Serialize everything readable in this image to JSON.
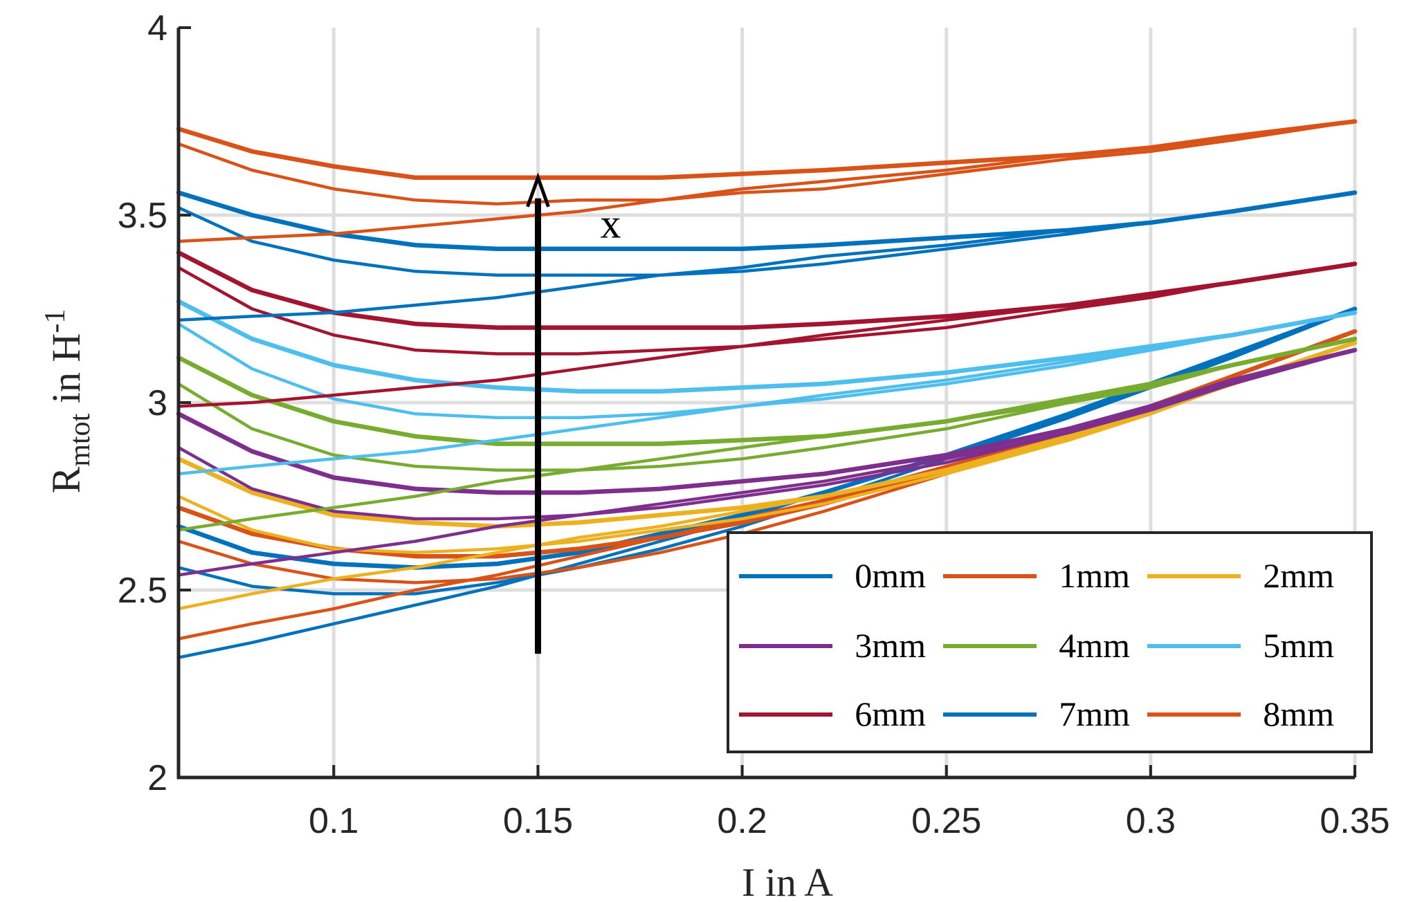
{
  "chart_data": {
    "type": "line",
    "title": "",
    "xlabel": "I in A",
    "ylabel": {
      "base": "R",
      "subscript": "mtot",
      "mid": " in H",
      "superscript": "-1"
    },
    "xlim": [
      0.062,
      0.35
    ],
    "ylim": [
      2,
      4
    ],
    "grid": true,
    "x_ticks": [
      {
        "value": 0.1,
        "label": "0.1"
      },
      {
        "value": 0.15,
        "label": "0.15"
      },
      {
        "value": 0.2,
        "label": "0.2"
      },
      {
        "value": 0.25,
        "label": "0.25"
      },
      {
        "value": 0.3,
        "label": "0.3"
      },
      {
        "value": 0.35,
        "label": "0.35"
      }
    ],
    "y_ticks": [
      {
        "value": 2,
        "label": "2"
      },
      {
        "value": 2.5,
        "label": "2.5"
      },
      {
        "value": 3,
        "label": "3"
      },
      {
        "value": 3.5,
        "label": "3.5"
      },
      {
        "value": 4,
        "label": "4"
      }
    ],
    "legend_position": "bottom-right",
    "legend_columns": 3,
    "annotation": {
      "text": "x",
      "arrow_x": 0.15,
      "arrow_from": 2.33,
      "arrow_to": 3.6
    },
    "series": [
      {
        "name": "0mm",
        "color": "#0072BD",
        "curves": [
          {
            "x": [
              0.062,
              0.08,
              0.1,
              0.12,
              0.14,
              0.16,
              0.18,
              0.2,
              0.22,
              0.25,
              0.28,
              0.3,
              0.32,
              0.35
            ],
            "y": [
              2.67,
              2.6,
              2.57,
              2.56,
              2.57,
              2.6,
              2.65,
              2.7,
              2.76,
              2.86,
              2.97,
              3.05,
              3.13,
              3.25
            ]
          },
          {
            "x": [
              0.062,
              0.08,
              0.1,
              0.12,
              0.14,
              0.16,
              0.18,
              0.2,
              0.22,
              0.25,
              0.28,
              0.3,
              0.32,
              0.35
            ],
            "y": [
              2.56,
              2.51,
              2.49,
              2.49,
              2.52,
              2.56,
              2.61,
              2.67,
              2.74,
              2.85,
              2.96,
              3.04,
              3.12,
              3.25
            ]
          },
          {
            "x": [
              0.062,
              0.08,
              0.1,
              0.12,
              0.14,
              0.16,
              0.18,
              0.2,
              0.22,
              0.25,
              0.28,
              0.3,
              0.32,
              0.35
            ],
            "y": [
              2.32,
              2.36,
              2.41,
              2.46,
              2.51,
              2.57,
              2.63,
              2.69,
              2.76,
              2.86,
              2.97,
              3.05,
              3.13,
              3.25
            ]
          }
        ]
      },
      {
        "name": "1mm",
        "color": "#D95319",
        "curves": [
          {
            "x": [
              0.062,
              0.08,
              0.1,
              0.12,
              0.14,
              0.16,
              0.18,
              0.2,
              0.22,
              0.25,
              0.28,
              0.3,
              0.32,
              0.35
            ],
            "y": [
              2.72,
              2.65,
              2.61,
              2.59,
              2.59,
              2.61,
              2.64,
              2.68,
              2.73,
              2.82,
              2.92,
              2.99,
              3.07,
              3.19
            ]
          },
          {
            "x": [
              0.062,
              0.08,
              0.1,
              0.12,
              0.14,
              0.16,
              0.18,
              0.2,
              0.22,
              0.25,
              0.28,
              0.3,
              0.32,
              0.35
            ],
            "y": [
              2.63,
              2.57,
              2.53,
              2.52,
              2.53,
              2.56,
              2.6,
              2.65,
              2.71,
              2.81,
              2.91,
              2.99,
              3.07,
              3.19
            ]
          },
          {
            "x": [
              0.062,
              0.08,
              0.1,
              0.12,
              0.14,
              0.16,
              0.18,
              0.2,
              0.22,
              0.25,
              0.28,
              0.3,
              0.32,
              0.35
            ],
            "y": [
              2.37,
              2.41,
              2.45,
              2.5,
              2.54,
              2.59,
              2.64,
              2.69,
              2.74,
              2.83,
              2.92,
              2.99,
              3.07,
              3.19
            ]
          }
        ]
      },
      {
        "name": "2mm",
        "color": "#EDB120",
        "curves": [
          {
            "x": [
              0.062,
              0.08,
              0.1,
              0.12,
              0.14,
              0.16,
              0.18,
              0.2,
              0.22,
              0.25,
              0.28,
              0.3,
              0.32,
              0.35
            ],
            "y": [
              2.85,
              2.76,
              2.7,
              2.68,
              2.67,
              2.68,
              2.7,
              2.72,
              2.75,
              2.82,
              2.91,
              2.98,
              3.05,
              3.16
            ]
          },
          {
            "x": [
              0.062,
              0.08,
              0.1,
              0.12,
              0.14,
              0.16,
              0.18,
              0.2,
              0.22,
              0.25,
              0.28,
              0.3,
              0.32,
              0.35
            ],
            "y": [
              2.75,
              2.66,
              2.61,
              2.6,
              2.61,
              2.63,
              2.66,
              2.69,
              2.73,
              2.81,
              2.9,
              2.97,
              3.05,
              3.16
            ]
          },
          {
            "x": [
              0.062,
              0.08,
              0.1,
              0.12,
              0.14,
              0.16,
              0.18,
              0.2,
              0.22,
              0.25,
              0.28,
              0.3,
              0.32,
              0.35
            ],
            "y": [
              2.45,
              2.49,
              2.53,
              2.56,
              2.6,
              2.64,
              2.67,
              2.71,
              2.75,
              2.82,
              2.9,
              2.97,
              3.05,
              3.16
            ]
          }
        ]
      },
      {
        "name": "3mm",
        "color": "#7E2F8E",
        "curves": [
          {
            "x": [
              0.062,
              0.08,
              0.1,
              0.12,
              0.14,
              0.16,
              0.18,
              0.2,
              0.22,
              0.25,
              0.28,
              0.3,
              0.32,
              0.35
            ],
            "y": [
              2.97,
              2.87,
              2.8,
              2.77,
              2.76,
              2.76,
              2.77,
              2.79,
              2.81,
              2.86,
              2.93,
              2.99,
              3.06,
              3.14
            ]
          },
          {
            "x": [
              0.062,
              0.08,
              0.1,
              0.12,
              0.14,
              0.16,
              0.18,
              0.2,
              0.22,
              0.25,
              0.28,
              0.3,
              0.32,
              0.35
            ],
            "y": [
              2.88,
              2.77,
              2.71,
              2.69,
              2.69,
              2.7,
              2.72,
              2.75,
              2.78,
              2.84,
              2.92,
              2.98,
              3.05,
              3.14
            ]
          },
          {
            "x": [
              0.062,
              0.08,
              0.1,
              0.12,
              0.14,
              0.16,
              0.18,
              0.2,
              0.22,
              0.25,
              0.28,
              0.3,
              0.32,
              0.35
            ],
            "y": [
              2.54,
              2.57,
              2.6,
              2.63,
              2.67,
              2.7,
              2.73,
              2.76,
              2.79,
              2.85,
              2.92,
              2.98,
              3.05,
              3.14
            ]
          }
        ]
      },
      {
        "name": "4mm",
        "color": "#77AC30",
        "curves": [
          {
            "x": [
              0.062,
              0.08,
              0.1,
              0.12,
              0.14,
              0.16,
              0.18,
              0.2,
              0.22,
              0.25,
              0.28,
              0.3,
              0.32,
              0.35
            ],
            "y": [
              3.12,
              3.02,
              2.95,
              2.91,
              2.89,
              2.89,
              2.89,
              2.9,
              2.91,
              2.95,
              3.01,
              3.05,
              3.1,
              3.17
            ]
          },
          {
            "x": [
              0.062,
              0.08,
              0.1,
              0.12,
              0.14,
              0.16,
              0.18,
              0.2,
              0.22,
              0.25,
              0.28,
              0.3,
              0.32,
              0.35
            ],
            "y": [
              3.05,
              2.93,
              2.86,
              2.83,
              2.82,
              2.82,
              2.83,
              2.85,
              2.88,
              2.93,
              3.0,
              3.04,
              3.1,
              3.17
            ]
          },
          {
            "x": [
              0.062,
              0.08,
              0.1,
              0.12,
              0.14,
              0.16,
              0.18,
              0.2,
              0.22,
              0.25,
              0.28,
              0.3,
              0.32,
              0.35
            ],
            "y": [
              2.66,
              2.69,
              2.72,
              2.75,
              2.79,
              2.82,
              2.85,
              2.88,
              2.91,
              2.95,
              3.0,
              3.04,
              3.1,
              3.17
            ]
          }
        ]
      },
      {
        "name": "5mm",
        "color": "#4DBEEE",
        "curves": [
          {
            "x": [
              0.062,
              0.08,
              0.1,
              0.12,
              0.14,
              0.16,
              0.18,
              0.2,
              0.22,
              0.25,
              0.28,
              0.3,
              0.32,
              0.35
            ],
            "y": [
              3.27,
              3.17,
              3.1,
              3.06,
              3.04,
              3.03,
              3.03,
              3.04,
              3.05,
              3.08,
              3.12,
              3.15,
              3.18,
              3.24
            ]
          },
          {
            "x": [
              0.062,
              0.08,
              0.1,
              0.12,
              0.14,
              0.16,
              0.18,
              0.2,
              0.22,
              0.25,
              0.28,
              0.3,
              0.32,
              0.35
            ],
            "y": [
              3.21,
              3.09,
              3.01,
              2.97,
              2.96,
              2.96,
              2.97,
              2.99,
              3.01,
              3.05,
              3.1,
              3.14,
              3.18,
              3.24
            ]
          },
          {
            "x": [
              0.062,
              0.08,
              0.1,
              0.12,
              0.14,
              0.16,
              0.18,
              0.2,
              0.22,
              0.25,
              0.28,
              0.3,
              0.32,
              0.35
            ],
            "y": [
              2.81,
              2.83,
              2.85,
              2.87,
              2.9,
              2.93,
              2.96,
              2.99,
              3.02,
              3.06,
              3.11,
              3.14,
              3.18,
              3.24
            ]
          }
        ]
      },
      {
        "name": "6mm",
        "color": "#A2142F",
        "curves": [
          {
            "x": [
              0.062,
              0.08,
              0.1,
              0.12,
              0.14,
              0.16,
              0.18,
              0.2,
              0.22,
              0.25,
              0.28,
              0.3,
              0.32,
              0.35
            ],
            "y": [
              3.4,
              3.3,
              3.24,
              3.21,
              3.2,
              3.2,
              3.2,
              3.2,
              3.21,
              3.23,
              3.26,
              3.29,
              3.32,
              3.37
            ]
          },
          {
            "x": [
              0.062,
              0.08,
              0.1,
              0.12,
              0.14,
              0.16,
              0.18,
              0.2,
              0.22,
              0.25,
              0.28,
              0.3,
              0.32,
              0.35
            ],
            "y": [
              3.36,
              3.25,
              3.18,
              3.14,
              3.13,
              3.13,
              3.14,
              3.15,
              3.17,
              3.2,
              3.25,
              3.28,
              3.32,
              3.37
            ]
          },
          {
            "x": [
              0.062,
              0.08,
              0.1,
              0.12,
              0.14,
              0.16,
              0.18,
              0.2,
              0.22,
              0.25,
              0.28,
              0.3,
              0.32,
              0.35
            ],
            "y": [
              2.99,
              3.0,
              3.02,
              3.04,
              3.06,
              3.09,
              3.12,
              3.15,
              3.18,
              3.22,
              3.26,
              3.29,
              3.32,
              3.37
            ]
          }
        ]
      },
      {
        "name": "7mm",
        "color": "#0072BD",
        "curves": [
          {
            "x": [
              0.062,
              0.08,
              0.1,
              0.12,
              0.14,
              0.16,
              0.18,
              0.2,
              0.22,
              0.25,
              0.28,
              0.3,
              0.32,
              0.35
            ],
            "y": [
              3.56,
              3.5,
              3.45,
              3.42,
              3.41,
              3.41,
              3.41,
              3.41,
              3.42,
              3.44,
              3.46,
              3.48,
              3.51,
              3.56
            ]
          },
          {
            "x": [
              0.062,
              0.08,
              0.1,
              0.12,
              0.14,
              0.16,
              0.18,
              0.2,
              0.22,
              0.25,
              0.28,
              0.3,
              0.32,
              0.35
            ],
            "y": [
              3.52,
              3.43,
              3.38,
              3.35,
              3.34,
              3.34,
              3.34,
              3.35,
              3.37,
              3.41,
              3.45,
              3.48,
              3.51,
              3.56
            ]
          },
          {
            "x": [
              0.062,
              0.08,
              0.1,
              0.12,
              0.14,
              0.16,
              0.18,
              0.2,
              0.22,
              0.25,
              0.28,
              0.3,
              0.32,
              0.35
            ],
            "y": [
              3.22,
              3.23,
              3.24,
              3.26,
              3.28,
              3.31,
              3.34,
              3.36,
              3.39,
              3.42,
              3.46,
              3.48,
              3.51,
              3.56
            ]
          }
        ]
      },
      {
        "name": "8mm",
        "color": "#D95319",
        "curves": [
          {
            "x": [
              0.062,
              0.08,
              0.1,
              0.12,
              0.14,
              0.16,
              0.18,
              0.2,
              0.22,
              0.25,
              0.28,
              0.3,
              0.32,
              0.35
            ],
            "y": [
              3.73,
              3.67,
              3.63,
              3.6,
              3.6,
              3.6,
              3.6,
              3.61,
              3.62,
              3.64,
              3.66,
              3.68,
              3.71,
              3.75
            ]
          },
          {
            "x": [
              0.062,
              0.08,
              0.1,
              0.12,
              0.14,
              0.16,
              0.18,
              0.2,
              0.22,
              0.25,
              0.28,
              0.3,
              0.32,
              0.35
            ],
            "y": [
              3.69,
              3.62,
              3.57,
              3.54,
              3.53,
              3.54,
              3.54,
              3.56,
              3.57,
              3.61,
              3.65,
              3.67,
              3.7,
              3.75
            ]
          },
          {
            "x": [
              0.062,
              0.08,
              0.1,
              0.12,
              0.14,
              0.16,
              0.18,
              0.2,
              0.22,
              0.25,
              0.28,
              0.3,
              0.32,
              0.35
            ],
            "y": [
              3.43,
              3.44,
              3.45,
              3.47,
              3.49,
              3.51,
              3.54,
              3.57,
              3.59,
              3.62,
              3.66,
              3.68,
              3.71,
              3.75
            ]
          }
        ]
      }
    ]
  }
}
